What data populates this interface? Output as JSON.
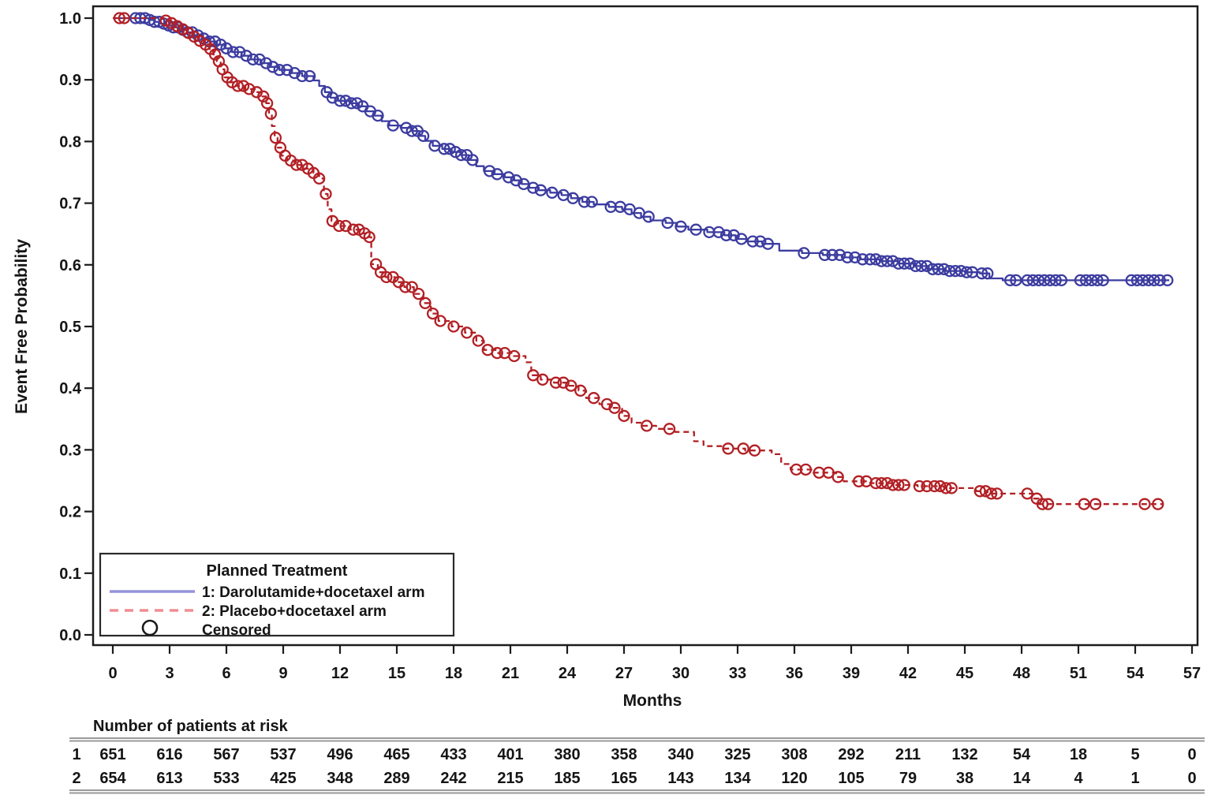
{
  "chart_data": {
    "type": "line",
    "subtype": "kaplan-meier-step",
    "title": "",
    "xlabel": "Months",
    "ylabel": "Event Free Probability",
    "xlim": [
      0,
      57
    ],
    "ylim": [
      0.0,
      1.0
    ],
    "grid": false,
    "x_ticks": [
      0,
      3,
      6,
      9,
      12,
      15,
      18,
      21,
      24,
      27,
      30,
      33,
      36,
      39,
      42,
      45,
      48,
      51,
      54,
      57
    ],
    "y_ticks": [
      "1.0",
      "0.9",
      "0.8",
      "0.7",
      "0.6",
      "0.5",
      "0.4",
      "0.3",
      "0.2",
      "0.1",
      "0.0"
    ],
    "colors": {
      "series1": "#3c3ca0",
      "series2": "#b22025",
      "legend_line1": "#9494da",
      "legend_line2": "#ef8d90",
      "axis": "#1c1c1c",
      "table_rule": "#999999",
      "text": "#151515"
    },
    "legend": {
      "title": "Planned Treatment",
      "position": "bottom-left-inside",
      "entries": [
        {
          "label": "1: Darolutamide+docetaxel arm",
          "style": "solid"
        },
        {
          "label": "2: Placebo+docetaxel arm",
          "style": "dashed"
        },
        {
          "label": "Censored",
          "style": "marker"
        }
      ]
    },
    "series": [
      {
        "name": "1: Darolutamide+docetaxel arm",
        "dash": "solid",
        "end_time": 55.8,
        "steps": [
          [
            1.9,
            0.997
          ],
          [
            2.2,
            0.994
          ],
          [
            2.5,
            0.991
          ],
          [
            2.8,
            0.988
          ],
          [
            3.1,
            0.985
          ],
          [
            3.5,
            0.981
          ],
          [
            3.9,
            0.977
          ],
          [
            4.3,
            0.972
          ],
          [
            4.7,
            0.967
          ],
          [
            5.1,
            0.962
          ],
          [
            5.5,
            0.957
          ],
          [
            5.9,
            0.951
          ],
          [
            6.3,
            0.945
          ],
          [
            6.8,
            0.939
          ],
          [
            7.3,
            0.933
          ],
          [
            7.8,
            0.927
          ],
          [
            8.3,
            0.921
          ],
          [
            8.8,
            0.916
          ],
          [
            9.4,
            0.911
          ],
          [
            10.0,
            0.906
          ],
          [
            10.6,
            0.899
          ],
          [
            10.9,
            0.89
          ],
          [
            11.2,
            0.88
          ],
          [
            11.5,
            0.871
          ],
          [
            11.9,
            0.866
          ],
          [
            12.5,
            0.862
          ],
          [
            13.0,
            0.857
          ],
          [
            13.4,
            0.849
          ],
          [
            13.8,
            0.842
          ],
          [
            14.2,
            0.833
          ],
          [
            14.6,
            0.826
          ],
          [
            15.2,
            0.822
          ],
          [
            15.8,
            0.817
          ],
          [
            16.2,
            0.809
          ],
          [
            16.5,
            0.801
          ],
          [
            16.9,
            0.793
          ],
          [
            17.4,
            0.788
          ],
          [
            17.9,
            0.783
          ],
          [
            18.4,
            0.778
          ],
          [
            18.8,
            0.77
          ],
          [
            19.2,
            0.76
          ],
          [
            19.6,
            0.752
          ],
          [
            20.1,
            0.747
          ],
          [
            20.7,
            0.742
          ],
          [
            21.2,
            0.737
          ],
          [
            21.6,
            0.731
          ],
          [
            22.0,
            0.725
          ],
          [
            22.5,
            0.721
          ],
          [
            23.1,
            0.717
          ],
          [
            23.7,
            0.713
          ],
          [
            24.2,
            0.708
          ],
          [
            24.8,
            0.702
          ],
          [
            25.4,
            0.698
          ],
          [
            26.2,
            0.694
          ],
          [
            26.9,
            0.69
          ],
          [
            27.4,
            0.684
          ],
          [
            27.9,
            0.678
          ],
          [
            28.4,
            0.672
          ],
          [
            29.2,
            0.668
          ],
          [
            29.8,
            0.662
          ],
          [
            30.4,
            0.657
          ],
          [
            31.4,
            0.653
          ],
          [
            32.3,
            0.648
          ],
          [
            32.9,
            0.642
          ],
          [
            33.5,
            0.638
          ],
          [
            34.3,
            0.634
          ],
          [
            35.2,
            0.623
          ],
          [
            36.4,
            0.619
          ],
          [
            37.5,
            0.616
          ],
          [
            38.5,
            0.612
          ],
          [
            39.5,
            0.609
          ],
          [
            40.5,
            0.606
          ],
          [
            41.5,
            0.602
          ],
          [
            42.3,
            0.598
          ],
          [
            43.1,
            0.593
          ],
          [
            44.0,
            0.59
          ],
          [
            45.0,
            0.588
          ],
          [
            45.8,
            0.586
          ],
          [
            46.3,
            0.578
          ],
          [
            47.0,
            0.575
          ]
        ],
        "censors": [
          1.2,
          1.45,
          1.7,
          1.95,
          2.2,
          2.45,
          2.7,
          2.95,
          3.2,
          3.45,
          3.7,
          3.95,
          4.2,
          4.5,
          4.8,
          5.1,
          5.4,
          5.7,
          6.0,
          6.35,
          6.7,
          7.05,
          7.4,
          7.75,
          8.1,
          8.45,
          8.8,
          9.2,
          9.6,
          10.0,
          10.4,
          11.3,
          11.6,
          12.0,
          12.3,
          12.6,
          12.9,
          13.2,
          13.6,
          14.0,
          14.8,
          15.5,
          15.8,
          16.1,
          16.4,
          17.0,
          17.5,
          17.8,
          18.1,
          18.4,
          18.7,
          19.0,
          19.9,
          20.3,
          20.9,
          21.3,
          21.7,
          22.2,
          22.6,
          23.2,
          23.8,
          24.3,
          24.9,
          25.3,
          26.3,
          26.8,
          27.3,
          27.8,
          28.3,
          29.3,
          30.0,
          30.8,
          31.5,
          32.0,
          32.4,
          32.8,
          33.2,
          33.8,
          34.2,
          34.6,
          36.5,
          37.6,
          38.0,
          38.4,
          38.8,
          39.2,
          39.6,
          40.0,
          40.3,
          40.6,
          40.9,
          41.2,
          41.5,
          41.8,
          42.1,
          42.4,
          42.7,
          43.0,
          43.3,
          43.6,
          43.9,
          44.2,
          44.5,
          44.8,
          45.1,
          45.4,
          45.9,
          46.2,
          47.4,
          47.7,
          48.3,
          48.6,
          48.9,
          49.2,
          49.5,
          49.8,
          50.1,
          51.1,
          51.4,
          51.7,
          52.0,
          52.3,
          53.8,
          54.1,
          54.4,
          54.7,
          55.0,
          55.3,
          55.7
        ]
      },
      {
        "name": "2: Placebo+docetaxel arm",
        "dash": "dashed",
        "end_time": 55.5,
        "steps": [
          [
            2.7,
            0.996
          ],
          [
            3.0,
            0.992
          ],
          [
            3.3,
            0.987
          ],
          [
            3.6,
            0.982
          ],
          [
            3.9,
            0.976
          ],
          [
            4.2,
            0.97
          ],
          [
            4.5,
            0.963
          ],
          [
            4.8,
            0.957
          ],
          [
            5.1,
            0.95
          ],
          [
            5.3,
            0.941
          ],
          [
            5.5,
            0.93
          ],
          [
            5.7,
            0.917
          ],
          [
            5.9,
            0.904
          ],
          [
            6.1,
            0.896
          ],
          [
            6.5,
            0.89
          ],
          [
            7.0,
            0.885
          ],
          [
            7.5,
            0.88
          ],
          [
            7.9,
            0.873
          ],
          [
            8.1,
            0.862
          ],
          [
            8.25,
            0.845
          ],
          [
            8.4,
            0.825
          ],
          [
            8.55,
            0.806
          ],
          [
            8.7,
            0.79
          ],
          [
            8.9,
            0.777
          ],
          [
            9.2,
            0.769
          ],
          [
            9.6,
            0.762
          ],
          [
            10.1,
            0.756
          ],
          [
            10.6,
            0.749
          ],
          [
            10.9,
            0.74
          ],
          [
            11.15,
            0.715
          ],
          [
            11.35,
            0.69
          ],
          [
            11.55,
            0.671
          ],
          [
            11.9,
            0.663
          ],
          [
            12.5,
            0.657
          ],
          [
            13.1,
            0.651
          ],
          [
            13.5,
            0.645
          ],
          [
            13.65,
            0.601
          ],
          [
            14.0,
            0.588
          ],
          [
            14.4,
            0.58
          ],
          [
            14.9,
            0.572
          ],
          [
            15.4,
            0.564
          ],
          [
            15.9,
            0.553
          ],
          [
            16.4,
            0.538
          ],
          [
            16.8,
            0.521
          ],
          [
            17.2,
            0.509
          ],
          [
            17.9,
            0.5
          ],
          [
            18.6,
            0.49
          ],
          [
            19.2,
            0.477
          ],
          [
            19.6,
            0.462
          ],
          [
            20.3,
            0.457
          ],
          [
            21.1,
            0.452
          ],
          [
            21.8,
            0.442
          ],
          [
            22.1,
            0.421
          ],
          [
            22.6,
            0.414
          ],
          [
            23.3,
            0.409
          ],
          [
            24.0,
            0.404
          ],
          [
            24.6,
            0.396
          ],
          [
            25.0,
            0.384
          ],
          [
            25.7,
            0.374
          ],
          [
            26.4,
            0.368
          ],
          [
            26.9,
            0.355
          ],
          [
            27.4,
            0.344
          ],
          [
            28.0,
            0.339
          ],
          [
            28.7,
            0.334
          ],
          [
            29.7,
            0.329
          ],
          [
            30.7,
            0.314
          ],
          [
            31.2,
            0.306
          ],
          [
            32.2,
            0.302
          ],
          [
            33.4,
            0.299
          ],
          [
            34.8,
            0.293
          ],
          [
            35.3,
            0.277
          ],
          [
            35.8,
            0.268
          ],
          [
            37.0,
            0.263
          ],
          [
            38.2,
            0.256
          ],
          [
            38.6,
            0.249
          ],
          [
            40.0,
            0.246
          ],
          [
            41.2,
            0.243
          ],
          [
            42.5,
            0.241
          ],
          [
            43.9,
            0.238
          ],
          [
            45.6,
            0.233
          ],
          [
            46.2,
            0.229
          ],
          [
            48.6,
            0.221
          ],
          [
            48.9,
            0.212
          ]
        ],
        "censors": [
          0.35,
          0.6,
          2.8,
          3.1,
          3.4,
          3.7,
          4.0,
          4.3,
          4.6,
          4.9,
          5.15,
          5.4,
          5.6,
          5.8,
          6.05,
          6.3,
          6.6,
          6.9,
          7.2,
          7.6,
          7.95,
          8.15,
          8.35,
          8.6,
          8.85,
          9.1,
          9.4,
          9.7,
          10.0,
          10.3,
          10.6,
          10.9,
          11.25,
          11.6,
          11.95,
          12.3,
          12.7,
          13.0,
          13.3,
          13.55,
          13.9,
          14.15,
          14.45,
          14.8,
          15.1,
          15.45,
          15.8,
          16.15,
          16.5,
          16.9,
          17.3,
          18.0,
          18.7,
          19.3,
          19.8,
          20.3,
          20.7,
          21.2,
          22.2,
          22.7,
          23.4,
          23.8,
          24.2,
          24.7,
          25.4,
          26.1,
          26.5,
          27.0,
          28.2,
          29.4,
          32.5,
          33.3,
          33.9,
          36.1,
          36.6,
          37.3,
          37.8,
          38.3,
          39.4,
          39.8,
          40.3,
          40.6,
          40.9,
          41.2,
          41.5,
          41.8,
          42.6,
          43.0,
          43.4,
          43.7,
          44.0,
          44.3,
          45.8,
          46.1,
          46.4,
          46.7,
          48.3,
          48.8,
          49.1,
          49.4,
          51.3,
          51.9,
          54.5,
          55.2
        ]
      }
    ],
    "risk_table": {
      "title": "Number of patients at risk",
      "times": [
        0,
        3,
        6,
        9,
        12,
        15,
        18,
        21,
        24,
        27,
        30,
        33,
        36,
        39,
        42,
        45,
        48,
        51,
        54,
        57
      ],
      "rows": [
        {
          "label": "1",
          "counts": [
            651,
            616,
            567,
            537,
            496,
            465,
            433,
            401,
            380,
            358,
            340,
            325,
            308,
            292,
            211,
            132,
            54,
            18,
            5,
            0
          ]
        },
        {
          "label": "2",
          "counts": [
            654,
            613,
            533,
            425,
            348,
            289,
            242,
            215,
            185,
            165,
            143,
            134,
            120,
            105,
            79,
            38,
            14,
            4,
            1,
            0
          ]
        }
      ]
    }
  }
}
